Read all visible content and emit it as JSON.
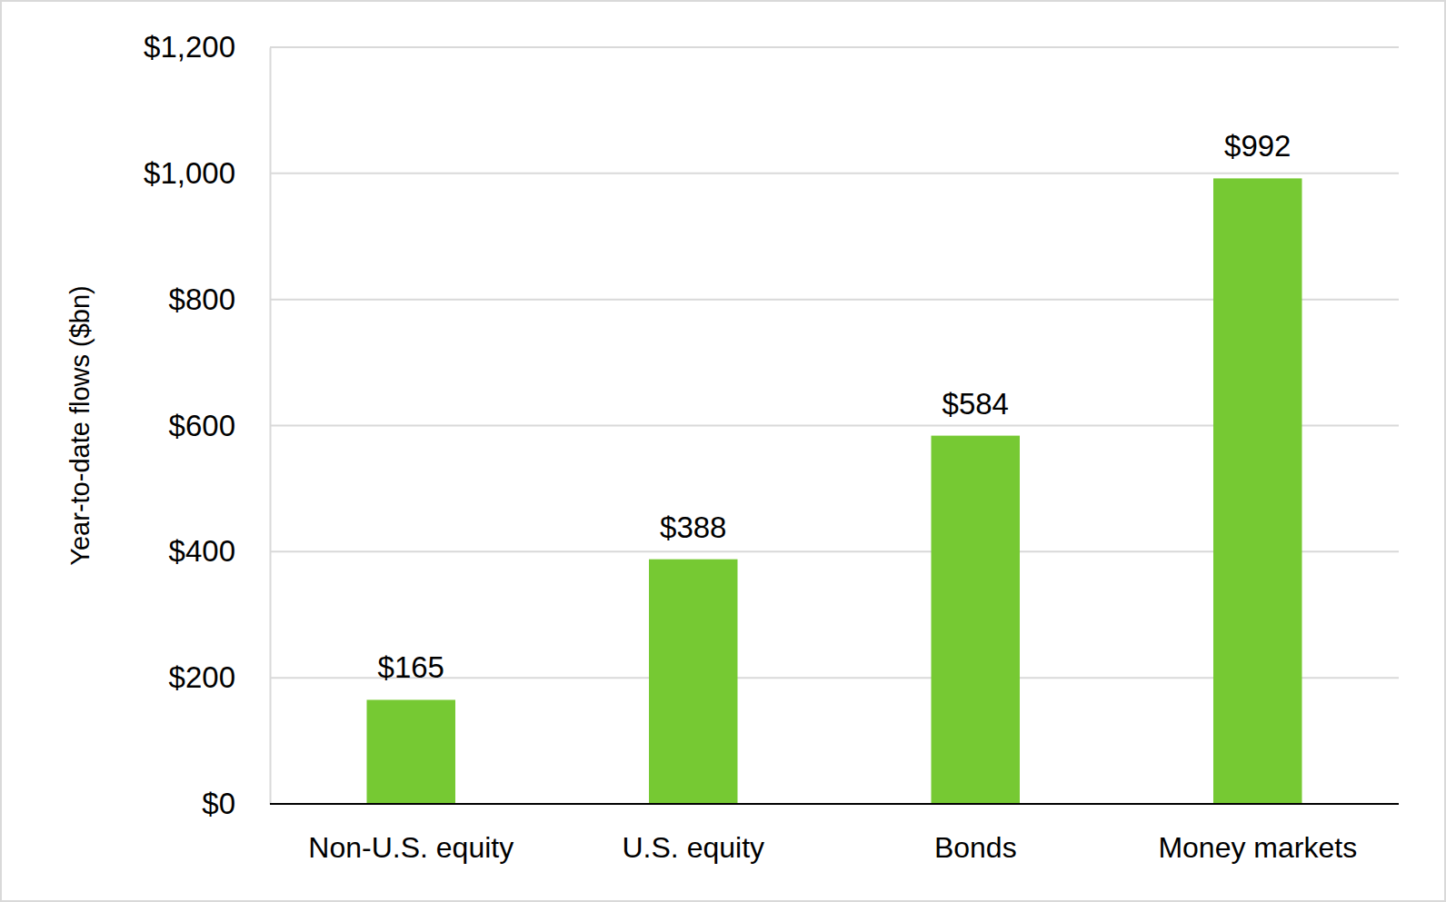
{
  "chart_data": {
    "type": "bar",
    "y_label": "Year-to-date flows ($bn)",
    "categories": [
      "Non-U.S. equity",
      "U.S. equity",
      "Bonds",
      "Money markets"
    ],
    "values": [
      165,
      388,
      584,
      992
    ],
    "value_labels": [
      "$165",
      "$388",
      "$584",
      "$992"
    ],
    "color": "#76c933",
    "ylim": [
      0,
      1200
    ],
    "yticks": [
      {
        "value": 0,
        "label": "$0"
      },
      {
        "value": 200,
        "label": "$200"
      },
      {
        "value": 400,
        "label": "$400"
      },
      {
        "value": 600,
        "label": "$600"
      },
      {
        "value": 800,
        "label": "$800"
      },
      {
        "value": 1000,
        "label": "$1,000"
      },
      {
        "value": 1200,
        "label": "$1,200"
      }
    ],
    "grid": true,
    "data_labels": true
  }
}
